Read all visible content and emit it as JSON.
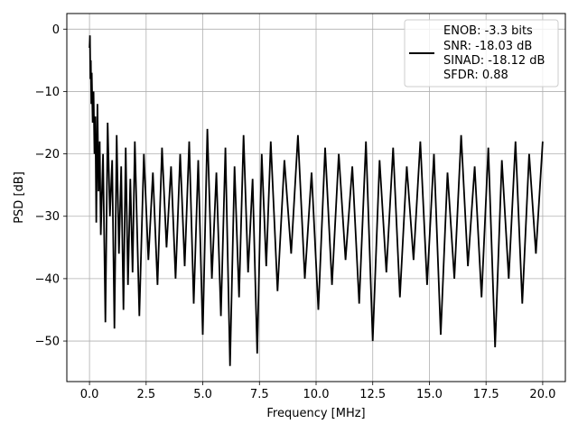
{
  "chart_data": {
    "type": "line",
    "xlabel": "Frequency [MHz]",
    "ylabel": "PSD [dB]",
    "xlim": [
      -1.0,
      21.0
    ],
    "ylim": [
      -56.5,
      2.5
    ],
    "x_ticks": [
      0.0,
      2.5,
      5.0,
      7.5,
      10.0,
      12.5,
      15.0,
      17.5,
      20.0
    ],
    "x_tick_labels": [
      "0.0",
      "2.5",
      "5.0",
      "7.5",
      "10.0",
      "12.5",
      "15.0",
      "17.5",
      "20.0"
    ],
    "y_ticks": [
      0,
      -10,
      -20,
      -30,
      -40,
      -50
    ],
    "y_tick_labels": [
      "0",
      "−10",
      "−20",
      "−30",
      "−40",
      "−50"
    ],
    "grid": true,
    "legend_position": "top-right",
    "series": [
      {
        "color": "#000000",
        "x": [
          0.0,
          0.02,
          0.04,
          0.06,
          0.08,
          0.1,
          0.14,
          0.18,
          0.22,
          0.26,
          0.3,
          0.35,
          0.4,
          0.45,
          0.5,
          0.6,
          0.7,
          0.8,
          0.9,
          1.0,
          1.1,
          1.2,
          1.3,
          1.4,
          1.5,
          1.6,
          1.7,
          1.8,
          1.9,
          2.0,
          2.2,
          2.4,
          2.6,
          2.8,
          3.0,
          3.2,
          3.4,
          3.6,
          3.8,
          4.0,
          4.2,
          4.4,
          4.6,
          4.8,
          5.0,
          5.2,
          5.4,
          5.6,
          5.8,
          6.0,
          6.2,
          6.4,
          6.6,
          6.8,
          7.0,
          7.2,
          7.4,
          7.6,
          7.8,
          8.0,
          8.3,
          8.6,
          8.9,
          9.2,
          9.5,
          9.8,
          10.1,
          10.4,
          10.7,
          11.0,
          11.3,
          11.6,
          11.9,
          12.2,
          12.5,
          12.8,
          13.1,
          13.4,
          13.7,
          14.0,
          14.3,
          14.6,
          14.9,
          15.2,
          15.5,
          15.8,
          16.1,
          16.4,
          16.7,
          17.0,
          17.3,
          17.6,
          17.9,
          18.2,
          18.5,
          18.8,
          19.1,
          19.4,
          19.7,
          20.0
        ],
        "values": [
          -3,
          -1,
          -8,
          -5,
          -12,
          -7,
          -15,
          -10,
          -20,
          -14,
          -31,
          -12,
          -26,
          -18,
          -33,
          -20,
          -47,
          -15,
          -30,
          -21,
          -48,
          -17,
          -36,
          -22,
          -45,
          -19,
          -41,
          -24,
          -39,
          -18,
          -46,
          -20,
          -37,
          -23,
          -41,
          -19,
          -35,
          -22,
          -40,
          -20,
          -38,
          -18,
          -44,
          -21,
          -49,
          -16,
          -40,
          -23,
          -46,
          -19,
          -54,
          -22,
          -43,
          -17,
          -39,
          -24,
          -52,
          -20,
          -38,
          -18,
          -42,
          -21,
          -36,
          -17,
          -40,
          -23,
          -45,
          -19,
          -41,
          -20,
          -37,
          -22,
          -44,
          -18,
          -50,
          -21,
          -39,
          -19,
          -43,
          -22,
          -37,
          -18,
          -41,
          -20,
          -49,
          -23,
          -40,
          -17,
          -38,
          -22,
          -43,
          -19,
          -51,
          -21,
          -40,
          -18,
          -44,
          -20,
          -36,
          -18
        ]
      }
    ],
    "legend_lines": [
      "ENOB: -3.3 bits",
      "SNR: -18.03 dB",
      "SINAD: -18.12 dB",
      "SFDR: 0.88"
    ]
  }
}
